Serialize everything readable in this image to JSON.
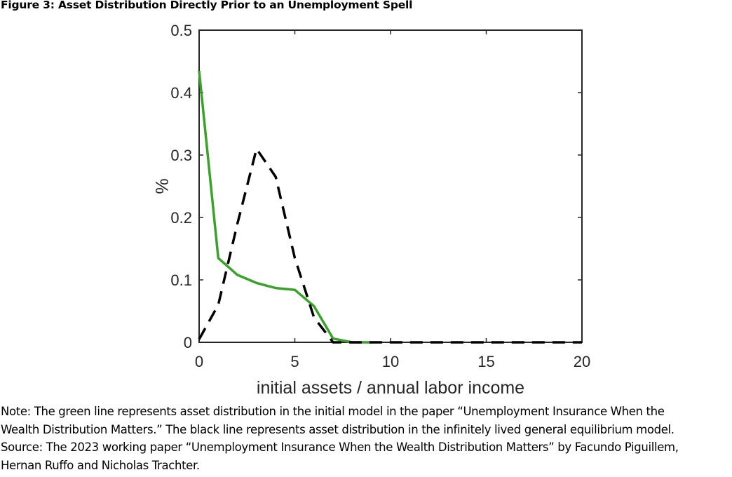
{
  "figure": {
    "title": "Figure 3: Asset Distribution Directly Prior to an Unemployment Spell"
  },
  "note": {
    "lines": [
      "Note: The green line represents asset distribution in the initial model in the paper “Unemployment Insurance When the",
      "Wealth Distribution Matters.” The black line represents asset distribution in the infinitely lived general equilibrium model.",
      "Source: The 2023 working paper “Unemployment Insurance When the Wealth Distribution Matters” by Facundo Piguillem,",
      "Hernan Ruffo and Nicholas Trachter."
    ]
  },
  "chart_data": {
    "type": "line",
    "title": "",
    "xlabel": "initial assets / annual labor income",
    "ylabel": "%",
    "xlim": [
      0,
      20
    ],
    "ylim": [
      0,
      0.5
    ],
    "xticks": [
      0,
      5,
      10,
      15,
      20
    ],
    "xtick_labels": [
      "0",
      "5",
      "10",
      "15",
      "20"
    ],
    "yticks": [
      0,
      0.1,
      0.2,
      0.3,
      0.4,
      0.5
    ],
    "ytick_labels": [
      "0",
      "0.1",
      "0.2",
      "0.3",
      "0.4",
      "0.5"
    ],
    "grid": false,
    "legend": "none",
    "series": [
      {
        "color": "#3aa12b",
        "style": "solid",
        "x": [
          0,
          1,
          2,
          3,
          4,
          5,
          6,
          7,
          8,
          9
        ],
        "y": [
          0.435,
          0.135,
          0.108,
          0.095,
          0.087,
          0.084,
          0.058,
          0.006,
          0.0,
          0.0
        ]
      },
      {
        "color": "#000000",
        "style": "dashed",
        "x": [
          0,
          1,
          2,
          3,
          4,
          5,
          6,
          7,
          8,
          9,
          10,
          11,
          12,
          13,
          14,
          15,
          16,
          17,
          18,
          19,
          20
        ],
        "y": [
          0.005,
          0.06,
          0.19,
          0.31,
          0.265,
          0.135,
          0.04,
          0.0,
          0.0,
          0.0,
          0.0,
          0.0,
          0.0,
          0.0,
          0.0,
          0.0,
          0.0,
          0.0,
          0.0,
          0.0,
          0.0
        ]
      }
    ]
  }
}
